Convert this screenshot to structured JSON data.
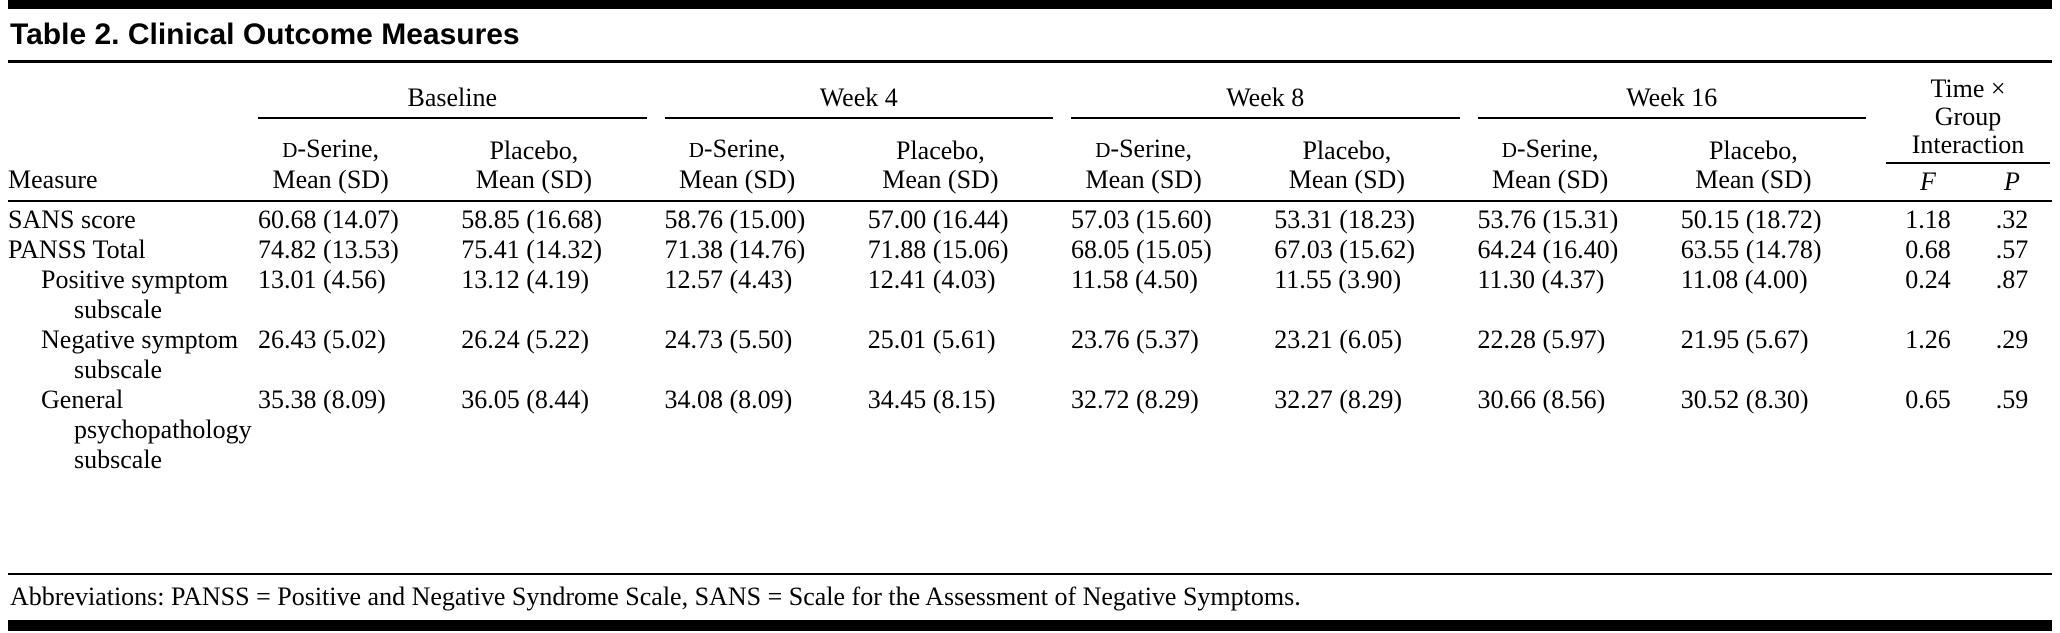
{
  "title": "Table 2. Clinical Outcome Measures",
  "columns": {
    "measure": "Measure",
    "groups": [
      "Baseline",
      "Week 4",
      "Week 8",
      "Week 16"
    ],
    "subheader": {
      "dserine_d": "D",
      "dserine_rest": "-Serine,",
      "placebo": "Placebo,",
      "mean_sd": "Mean (SD)"
    },
    "interaction": {
      "lines": [
        "Time ×",
        "Group",
        "Interaction"
      ],
      "f": "F",
      "p": "P"
    }
  },
  "rows": [
    {
      "measure": "SANS score",
      "values": [
        "60.68 (14.07)",
        "58.85 (16.68)",
        "58.76 (15.00)",
        "57.00 (16.44)",
        "57.03 (15.60)",
        "53.31 (18.23)",
        "53.76 (15.31)",
        "50.15 (18.72)"
      ],
      "f": "1.18",
      "p": ".32"
    },
    {
      "measure": "PANSS Total",
      "values": [
        "74.82 (13.53)",
        "75.41 (14.32)",
        "71.38 (14.76)",
        "71.88 (15.06)",
        "68.05 (15.05)",
        "67.03 (15.62)",
        "64.24 (16.40)",
        "63.55 (14.78)"
      ],
      "f": "0.68",
      "p": ".57"
    },
    {
      "measure": "Positive symptom subscale",
      "values": [
        "13.01 (4.56)",
        "13.12 (4.19)",
        "12.57 (4.43)",
        "12.41 (4.03)",
        "11.58 (4.50)",
        "11.55 (3.90)",
        "11.30 (4.37)",
        "11.08 (4.00)"
      ],
      "f": "0.24",
      "p": ".87"
    },
    {
      "measure": "Negative symptom subscale",
      "values": [
        "26.43 (5.02)",
        "26.24 (5.22)",
        "24.73 (5.50)",
        "25.01 (5.61)",
        "23.76 (5.37)",
        "23.21 (6.05)",
        "22.28 (5.97)",
        "21.95 (5.67)"
      ],
      "f": "1.26",
      "p": ".29"
    },
    {
      "measure": "General psychopathology subscale",
      "values": [
        "35.38 (8.09)",
        "36.05 (8.44)",
        "34.08 (8.09)",
        "34.45 (8.15)",
        "32.72 (8.29)",
        "32.27 (8.29)",
        "30.66 (8.56)",
        "30.52 (8.30)"
      ],
      "f": "0.65",
      "p": ".59"
    }
  ],
  "footnote": "Abbreviations: PANSS = Positive and Negative Syndrome Scale, SANS = Scale for the Assessment of Negative Symptoms."
}
